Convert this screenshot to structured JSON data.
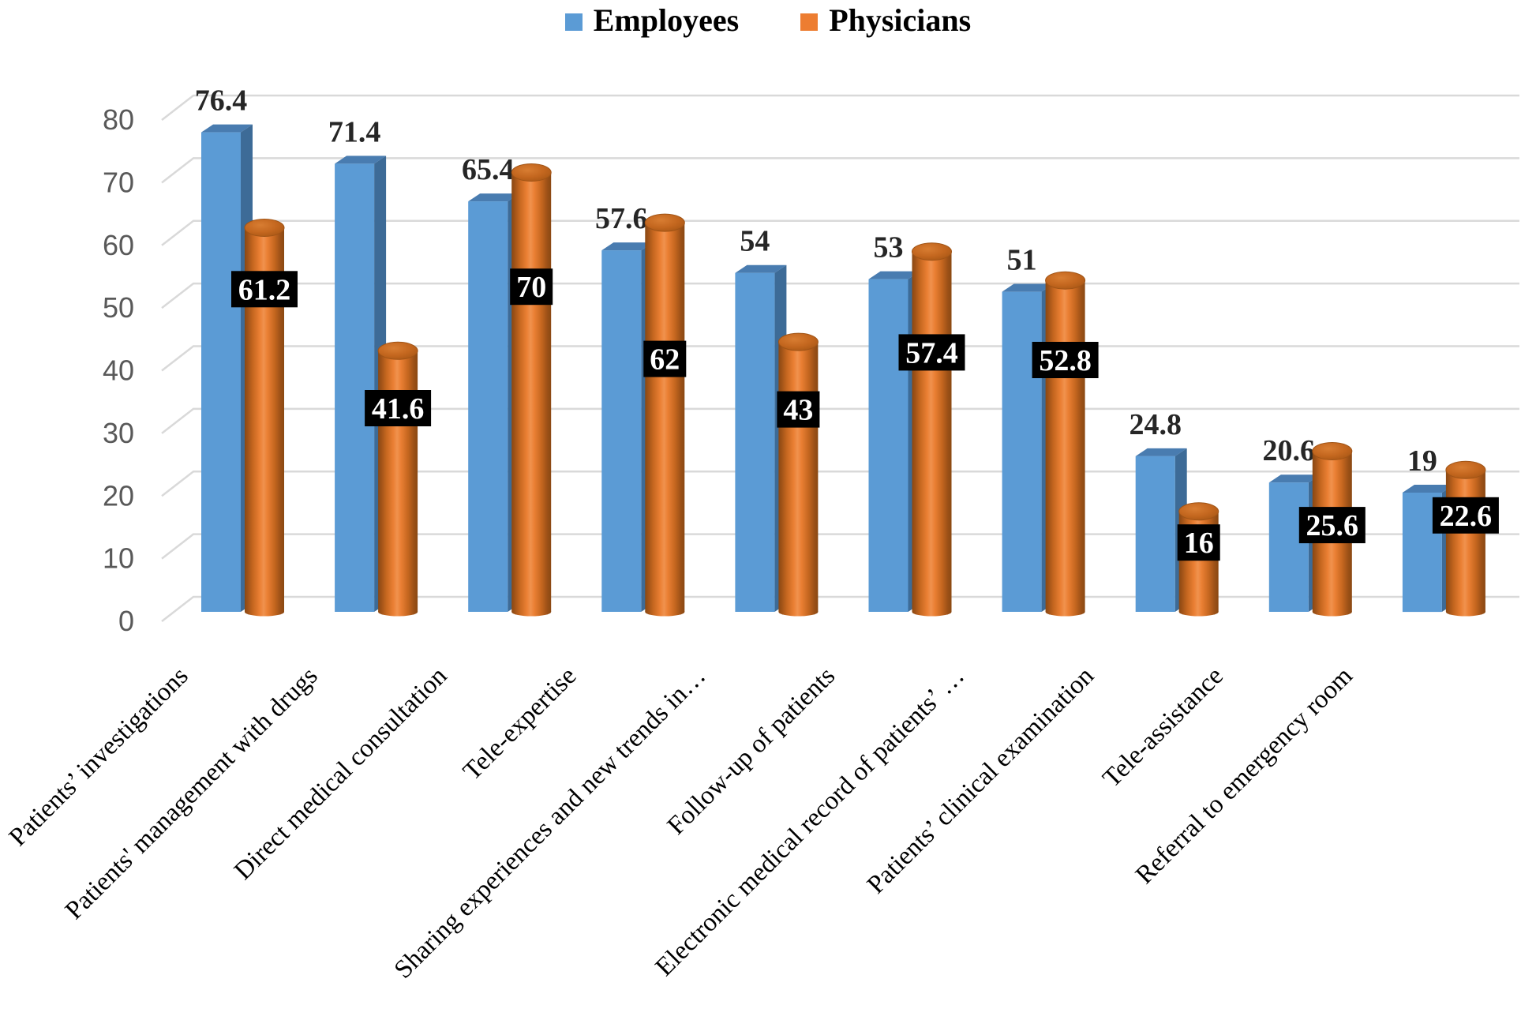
{
  "colors": {
    "employees_front": "#5b9bd5",
    "employees_top": "#497cb0",
    "employees_side": "#3d6b97",
    "physicians_base": "#ed7d31",
    "physicians_dark_edge": "#8a4812",
    "physicians_mid": "#c4661f",
    "physicians_bright": "#f0924e",
    "cylinder_top_fill": "#c4671f",
    "gridline": "#d9d9d9",
    "axis_tick_text": "#595959",
    "employee_value_text": "#262626",
    "physician_value_text": "#ffffff",
    "physician_value_bg": "#000000",
    "category_text": "#000000"
  },
  "chart_data": {
    "type": "bar",
    "style": "3d-clustered",
    "title": "",
    "categories": [
      "Patients’ investigations",
      "Patients' management with drugs",
      "Direct medical consultation",
      "Tele-expertise",
      "Sharing experiences and new trends in…",
      "Follow-up of patients",
      "Electronic medical record of patients’ …",
      "Patients’ clinical examination",
      "Tele-assistance",
      "Referral to emergency room"
    ],
    "series": [
      {
        "name": "Employees",
        "shape": "box",
        "color": "#5b9bd5",
        "values": [
          76.4,
          71.4,
          65.4,
          57.6,
          54,
          53,
          51,
          24.8,
          20.6,
          19
        ],
        "data_label_style": "black-text-above-bar"
      },
      {
        "name": "Physicians",
        "shape": "cylinder",
        "color": "#ed7d31",
        "values": [
          61.2,
          41.6,
          70,
          62,
          43,
          57.4,
          52.8,
          16,
          25.6,
          22.6
        ],
        "data_label_style": "white-text-on-black-box"
      }
    ],
    "y_axis": {
      "min": 0,
      "max": 80,
      "step": 10,
      "tick_labels": [
        "0",
        "10",
        "20",
        "30",
        "40",
        "50",
        "60",
        "70",
        "80"
      ]
    },
    "x_axis": {
      "label_rotation_deg": 45
    },
    "legend_position": "top-center",
    "grid": true,
    "physician_label_frac_from_top": [
      0.16,
      0.22,
      0.26,
      0.35,
      0.25,
      0.28,
      0.24,
      0.31,
      0.46,
      0.32
    ]
  }
}
